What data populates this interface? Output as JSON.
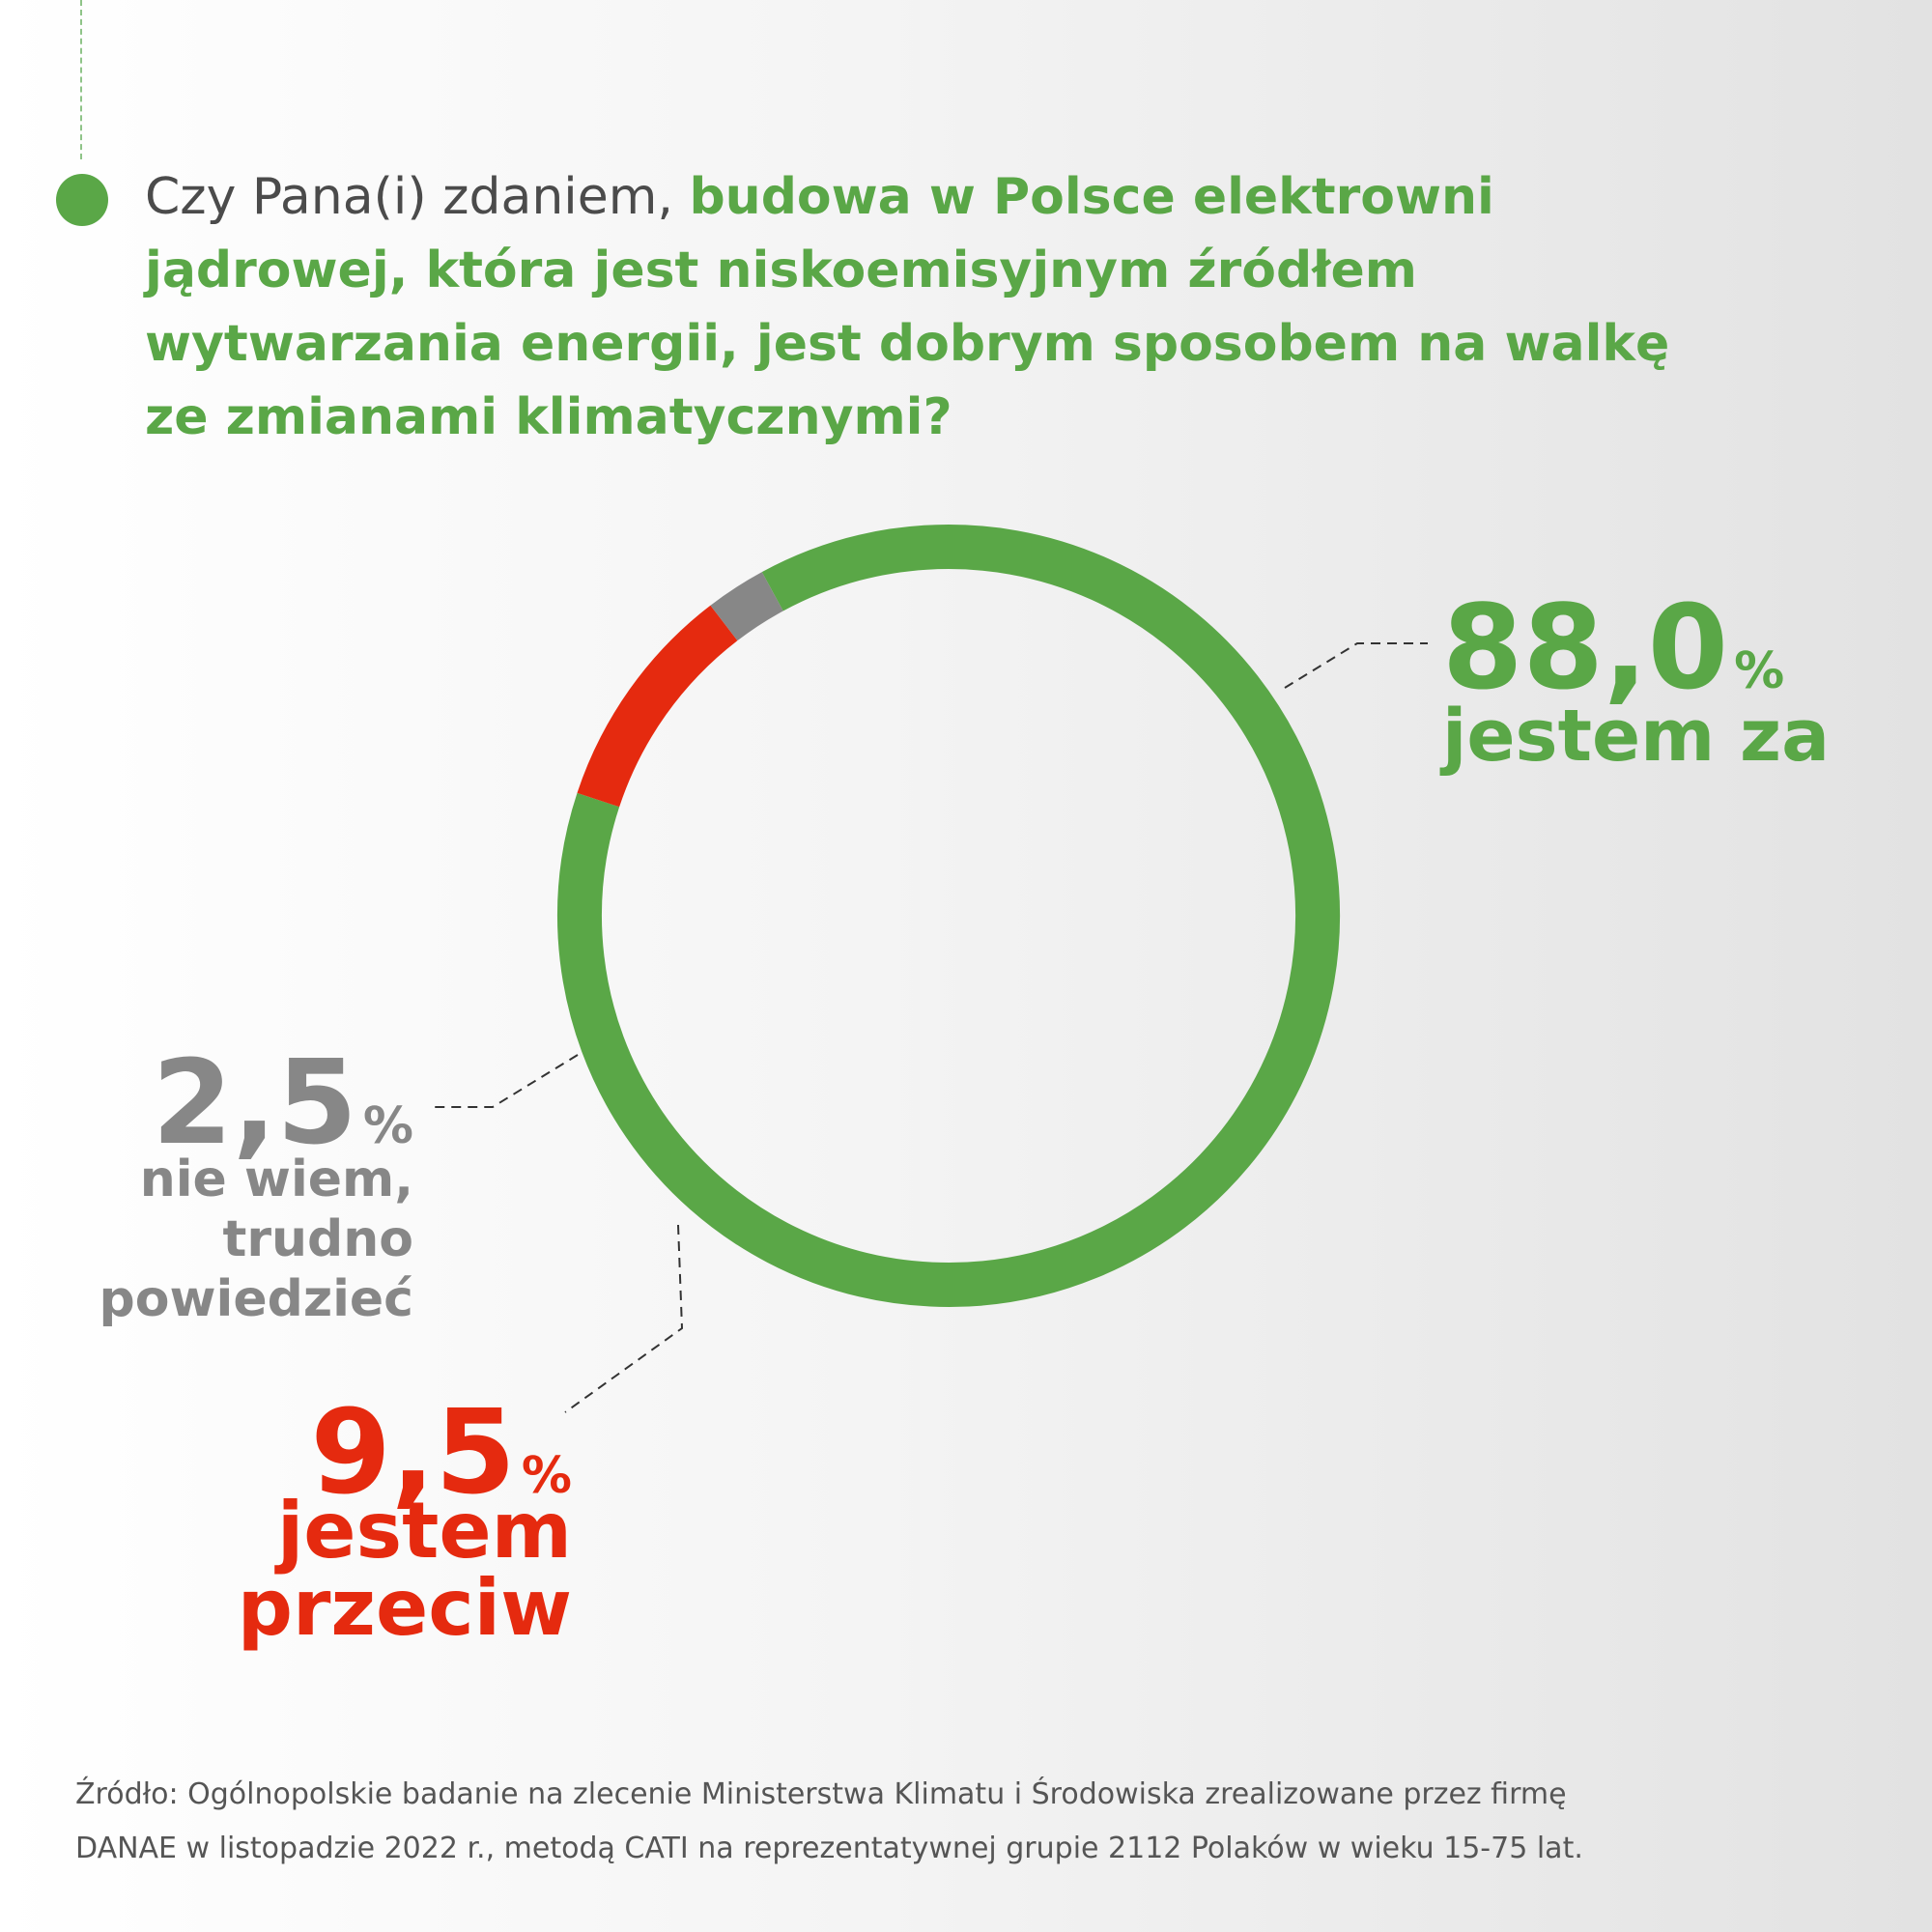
{
  "question": {
    "lead": "Czy Pana(i) zdaniem, ",
    "highlight": "budowa w Polsce elektrowni jądrowej, która jest niskoemisyjnym źródłem wytwarzania energii, jest dobrym sposobem na walkę ze zmianami klimatycznymi?"
  },
  "chart_data": {
    "type": "pie",
    "variant": "donut",
    "slices": [
      {
        "label": "jestem za",
        "value": 88.0,
        "value_text": "88,0",
        "color": "#5aa747"
      },
      {
        "label": "jestem przeciw",
        "value": 9.5,
        "value_text": "9,5",
        "color": "#e52a0f"
      },
      {
        "label": "nie wiem, trudno powiedzieć",
        "value": 2.5,
        "value_text": "2,5",
        "color": "#878787"
      }
    ],
    "unit": "%"
  },
  "source": {
    "line1": "Źródło: Ogólnopolskie badanie na zlecenie Ministerstwa Klimatu i Środowiska zrealizowane przez firmę",
    "line2": "DANAE w listopadzie 2022 r., metodą CATI na reprezentatywnej grupie 2112 Polaków w wieku 15-75 lat."
  }
}
